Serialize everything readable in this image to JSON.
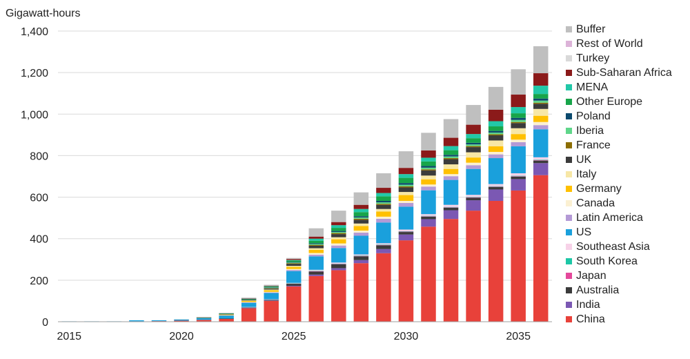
{
  "chart_data": {
    "type": "bar",
    "stacked": true,
    "ylabel": "Gigawatt-hours",
    "ylim": [
      0,
      1400
    ],
    "yticks": [
      0,
      200,
      400,
      600,
      800,
      1000,
      1200,
      1400
    ],
    "ytick_labels": [
      "0",
      "200",
      "400",
      "600",
      "800",
      "1,000",
      "1,200",
      "1,400"
    ],
    "x": [
      2015,
      2016,
      2017,
      2018,
      2019,
      2020,
      2021,
      2022,
      2023,
      2024,
      2025,
      2026,
      2027,
      2028,
      2029,
      2030,
      2031,
      2032,
      2033,
      2034,
      2035,
      2036
    ],
    "xticks": [
      2015,
      2020,
      2025,
      2030,
      2035
    ],
    "xtick_labels": [
      "2015",
      "2020",
      "2025",
      "2030",
      "2035"
    ],
    "grid": "horizontal",
    "legend_position": "right",
    "series": [
      {
        "name": "China",
        "color": "#e8413a",
        "values": [
          1,
          1,
          1,
          2,
          3,
          5,
          9,
          14,
          65,
          100,
          170,
          220,
          248,
          282,
          330,
          392,
          458,
          495,
          535,
          582,
          632,
          706
        ]
      },
      {
        "name": "India",
        "color": "#7b58b3",
        "values": [
          0,
          0,
          0,
          0,
          0,
          0,
          0,
          0,
          1,
          2,
          3,
          7,
          10,
          15,
          20,
          28,
          36,
          42,
          50,
          55,
          55,
          58
        ]
      },
      {
        "name": "Australia",
        "color": "#3b3b3b",
        "values": [
          0,
          0,
          0,
          0,
          0,
          0,
          0,
          1,
          2,
          3,
          10,
          14,
          18,
          18,
          18,
          12,
          12,
          12,
          12,
          12,
          12,
          12
        ]
      },
      {
        "name": "Japan",
        "color": "#e4489b",
        "values": [
          0,
          0,
          0,
          0,
          0,
          0,
          0,
          0,
          1,
          1,
          1,
          2,
          2,
          2,
          2,
          2,
          2,
          2,
          2,
          2,
          2,
          2
        ]
      },
      {
        "name": "South Korea",
        "color": "#1cc7a6",
        "values": [
          0,
          0,
          0,
          0,
          0,
          0,
          0,
          0,
          1,
          1,
          1,
          2,
          2,
          2,
          2,
          2,
          2,
          2,
          2,
          2,
          2,
          2
        ]
      },
      {
        "name": "Southeast Asia",
        "color": "#f7d2e8",
        "values": [
          0,
          0,
          0,
          0,
          0,
          0,
          0,
          0,
          1,
          1,
          2,
          5,
          5,
          5,
          6,
          8,
          8,
          10,
          10,
          10,
          12,
          12
        ]
      },
      {
        "name": "US",
        "color": "#1aa0dc",
        "values": [
          1,
          1,
          1,
          5,
          4,
          6,
          10,
          15,
          20,
          30,
          57,
          65,
          70,
          90,
          100,
          110,
          115,
          120,
          125,
          125,
          130,
          135
        ]
      },
      {
        "name": "Latin America",
        "color": "#b49ad6",
        "values": [
          0,
          0,
          0,
          0,
          0,
          0,
          0,
          1,
          2,
          3,
          5,
          8,
          12,
          15,
          18,
          18,
          18,
          18,
          18,
          18,
          20,
          20
        ]
      },
      {
        "name": "Canada",
        "color": "#fbf0d2",
        "values": [
          0,
          0,
          0,
          0,
          0,
          0,
          0,
          1,
          2,
          3,
          5,
          8,
          10,
          10,
          10,
          10,
          10,
          10,
          12,
          12,
          12,
          15
        ]
      },
      {
        "name": "Germany",
        "color": "#ffc000",
        "values": [
          0,
          0,
          0,
          0,
          0,
          0,
          1,
          2,
          5,
          8,
          10,
          15,
          20,
          22,
          25,
          28,
          25,
          25,
          25,
          27,
          27,
          30
        ]
      },
      {
        "name": "Italy",
        "color": "#f7e7a6",
        "values": [
          0,
          0,
          0,
          0,
          0,
          0,
          0,
          1,
          2,
          3,
          5,
          8,
          10,
          12,
          12,
          15,
          18,
          22,
          25,
          28,
          28,
          33
        ]
      },
      {
        "name": "UK",
        "color": "#3b3b3b",
        "values": [
          0,
          0,
          0,
          0,
          0,
          0,
          1,
          1,
          3,
          5,
          10,
          12,
          15,
          18,
          20,
          22,
          25,
          25,
          25,
          25,
          25,
          25
        ]
      },
      {
        "name": "France",
        "color": "#8c6d00",
        "values": [
          0,
          0,
          0,
          0,
          0,
          0,
          0,
          1,
          1,
          2,
          3,
          4,
          5,
          5,
          5,
          5,
          5,
          5,
          5,
          5,
          5,
          5
        ]
      },
      {
        "name": "Iberia",
        "color": "#5fd68a",
        "values": [
          0,
          0,
          0,
          0,
          0,
          0,
          0,
          1,
          1,
          2,
          3,
          4,
          5,
          6,
          7,
          8,
          8,
          8,
          8,
          8,
          10,
          10
        ]
      },
      {
        "name": "Poland",
        "color": "#0c4a6e",
        "values": [
          0,
          0,
          0,
          0,
          0,
          0,
          0,
          1,
          1,
          2,
          3,
          4,
          5,
          6,
          7,
          8,
          8,
          8,
          8,
          8,
          10,
          10
        ]
      },
      {
        "name": "Other Europe",
        "color": "#17a54a",
        "values": [
          0,
          0,
          0,
          0,
          0,
          0,
          0,
          1,
          2,
          3,
          6,
          12,
          15,
          20,
          22,
          25,
          22,
          22,
          22,
          22,
          22,
          22
        ]
      },
      {
        "name": "MENA",
        "color": "#22c8a8",
        "values": [
          0,
          0,
          0,
          0,
          0,
          0,
          0,
          0,
          1,
          2,
          3,
          10,
          13,
          15,
          16,
          18,
          18,
          20,
          20,
          25,
          30,
          40
        ]
      },
      {
        "name": "Sub-Saharan Africa",
        "color": "#8b1a1a",
        "values": [
          0,
          0,
          0,
          0,
          0,
          0,
          0,
          0,
          1,
          2,
          5,
          10,
          15,
          20,
          25,
          30,
          35,
          40,
          45,
          55,
          60,
          60
        ]
      },
      {
        "name": "Turkey",
        "color": "#d9d9d9",
        "values": [
          0,
          0,
          0,
          0,
          0,
          0,
          0,
          0,
          0,
          0,
          0,
          0,
          0,
          0,
          0,
          0,
          0,
          0,
          0,
          0,
          0,
          0
        ]
      },
      {
        "name": "Rest of World",
        "color": "#dcb3d8",
        "values": [
          0,
          0,
          0,
          0,
          0,
          0,
          0,
          0,
          0,
          0,
          0,
          0,
          0,
          0,
          0,
          0,
          0,
          0,
          0,
          0,
          0,
          0
        ]
      },
      {
        "name": "Buffer",
        "color": "#bfbfbf",
        "values": [
          0,
          0,
          0,
          0,
          0,
          1,
          2,
          3,
          4,
          5,
          5,
          40,
          55,
          60,
          70,
          80,
          85,
          90,
          95,
          110,
          122,
          130
        ]
      }
    ]
  }
}
